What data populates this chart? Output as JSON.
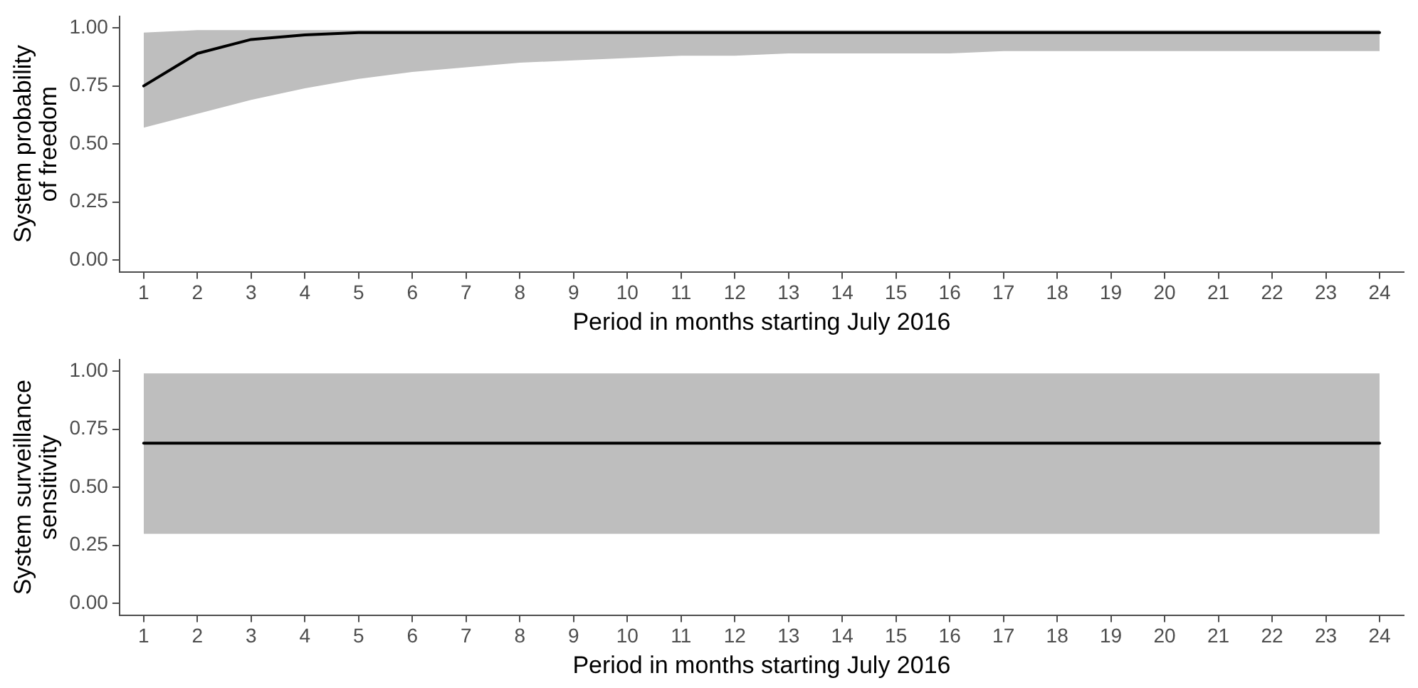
{
  "chart_data": [
    {
      "type": "line",
      "ylabel": "System probability of freedom",
      "xlabel": "Period in months starting July 2016",
      "x": [
        1,
        2,
        3,
        4,
        5,
        6,
        7,
        8,
        9,
        10,
        11,
        12,
        13,
        14,
        15,
        16,
        17,
        18,
        19,
        20,
        21,
        22,
        23,
        24
      ],
      "series": [
        {
          "color": "#000000",
          "values": [
            0.75,
            0.89,
            0.95,
            0.97,
            0.98,
            0.98,
            0.98,
            0.98,
            0.98,
            0.98,
            0.98,
            0.98,
            0.98,
            0.98,
            0.98,
            0.98,
            0.98,
            0.98,
            0.98,
            0.98,
            0.98,
            0.98,
            0.98,
            0.98
          ],
          "lower": [
            0.57,
            0.63,
            0.69,
            0.74,
            0.78,
            0.81,
            0.83,
            0.85,
            0.86,
            0.87,
            0.88,
            0.88,
            0.89,
            0.89,
            0.89,
            0.89,
            0.9,
            0.9,
            0.9,
            0.9,
            0.9,
            0.9,
            0.9,
            0.9
          ],
          "upper": [
            0.98,
            0.99,
            0.99,
            0.99,
            0.99,
            0.99,
            0.99,
            0.99,
            0.99,
            0.99,
            0.99,
            0.99,
            0.99,
            0.99,
            0.99,
            0.99,
            0.99,
            0.99,
            0.99,
            0.99,
            0.99,
            0.99,
            0.99,
            0.99
          ]
        }
      ],
      "xlim": [
        0.55,
        24.45
      ],
      "xticks": [
        1,
        2,
        3,
        4,
        5,
        6,
        7,
        8,
        9,
        10,
        11,
        12,
        13,
        14,
        15,
        16,
        17,
        18,
        19,
        20,
        21,
        22,
        23,
        24
      ],
      "ylim": [
        -0.05,
        1.05
      ],
      "yticks": [
        {
          "value": 0,
          "label": "0.00"
        },
        {
          "value": 0.25,
          "label": "0.25"
        },
        {
          "value": 0.5,
          "label": "0.50"
        },
        {
          "value": 0.75,
          "label": "0.75"
        },
        {
          "value": 1,
          "label": "1.00"
        }
      ],
      "marker": "none",
      "line_style": "solid"
    },
    {
      "type": "line",
      "ylabel": "System surveillance sensitivity",
      "xlabel": "Period in months starting July 2016",
      "x": [
        1,
        2,
        3,
        4,
        5,
        6,
        7,
        8,
        9,
        10,
        11,
        12,
        13,
        14,
        15,
        16,
        17,
        18,
        19,
        20,
        21,
        22,
        23,
        24
      ],
      "series": [
        {
          "color": "#000000",
          "values": [
            0.69,
            0.69,
            0.69,
            0.69,
            0.69,
            0.69,
            0.69,
            0.69,
            0.69,
            0.69,
            0.69,
            0.69,
            0.69,
            0.69,
            0.69,
            0.69,
            0.69,
            0.69,
            0.69,
            0.69,
            0.69,
            0.69,
            0.69,
            0.69
          ],
          "lower": [
            0.3,
            0.3,
            0.3,
            0.3,
            0.3,
            0.3,
            0.3,
            0.3,
            0.3,
            0.3,
            0.3,
            0.3,
            0.3,
            0.3,
            0.3,
            0.3,
            0.3,
            0.3,
            0.3,
            0.3,
            0.3,
            0.3,
            0.3,
            0.3
          ],
          "upper": [
            0.99,
            0.99,
            0.99,
            0.99,
            0.99,
            0.99,
            0.99,
            0.99,
            0.99,
            0.99,
            0.99,
            0.99,
            0.99,
            0.99,
            0.99,
            0.99,
            0.99,
            0.99,
            0.99,
            0.99,
            0.99,
            0.99,
            0.99,
            0.99
          ]
        }
      ],
      "xlim": [
        0.55,
        24.45
      ],
      "xticks": [
        1,
        2,
        3,
        4,
        5,
        6,
        7,
        8,
        9,
        10,
        11,
        12,
        13,
        14,
        15,
        16,
        17,
        18,
        19,
        20,
        21,
        22,
        23,
        24
      ],
      "ylim": [
        -0.05,
        1.05
      ],
      "yticks": [
        {
          "value": 0,
          "label": "0.00"
        },
        {
          "value": 0.25,
          "label": "0.25"
        },
        {
          "value": 0.5,
          "label": "0.50"
        },
        {
          "value": 0.75,
          "label": "0.75"
        },
        {
          "value": 1,
          "label": "1.00"
        }
      ],
      "marker": "none",
      "line_style": "solid"
    }
  ]
}
